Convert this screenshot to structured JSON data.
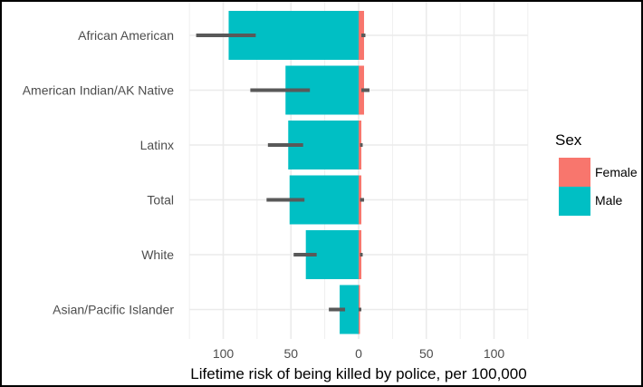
{
  "chart_data": {
    "type": "bar",
    "orientation": "horizontal-diverging",
    "categories": [
      "African American",
      "American Indian/AK Native",
      "Latinx",
      "Total",
      "White",
      "Asian/Pacific Islander"
    ],
    "series": [
      {
        "name": "Male",
        "color": "#00BFC4",
        "values": [
          96,
          54,
          52,
          51,
          39,
          14
        ],
        "error_low": [
          76,
          36,
          41,
          40,
          31,
          10
        ],
        "error_high": [
          120,
          80,
          67,
          68,
          48,
          22
        ]
      },
      {
        "name": "Female",
        "color": "#F8766D",
        "values": [
          4,
          4,
          2,
          2,
          2,
          1
        ],
        "error_low": [
          2,
          2,
          1,
          1,
          1,
          0
        ],
        "error_high": [
          5,
          8,
          3,
          4,
          3,
          2
        ]
      }
    ],
    "error_bar_color": "#595959",
    "xlabel": "Lifetime risk of being killed by police, per 100,000",
    "x_ticks": [
      100,
      50,
      0,
      50,
      100
    ],
    "xlim": [
      -125,
      125
    ],
    "grid": true,
    "legend": {
      "title": "Sex",
      "position": "right",
      "entries": [
        "Female",
        "Male"
      ]
    }
  }
}
